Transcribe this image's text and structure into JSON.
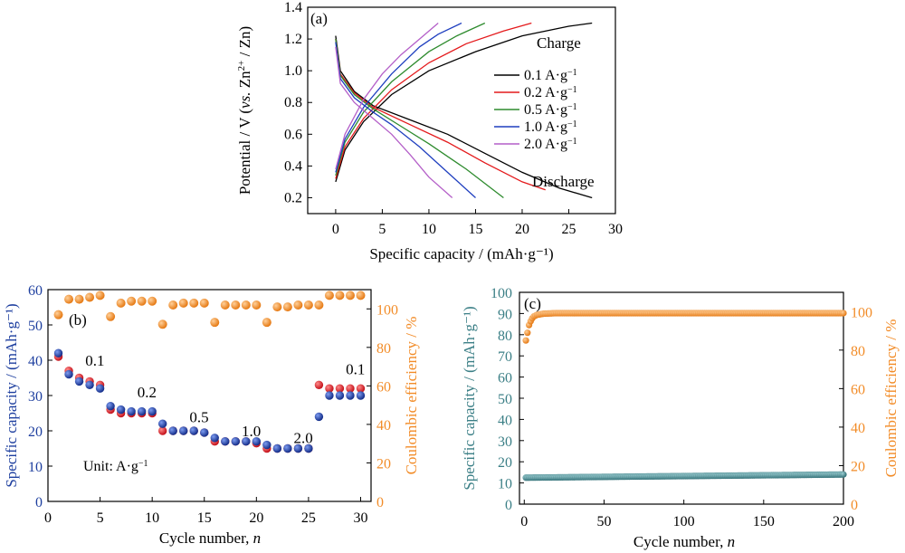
{
  "colors": {
    "black": "#000000",
    "red": "#e41a1c",
    "green": "#2e8b2e",
    "blue": "#1f3fbf",
    "purple": "#b45fc8",
    "capacity_blue": "#1e3f9f",
    "capacity_red": "#e31b23",
    "efficiency_orange": "#f28c28",
    "teal": "#3b7f86"
  },
  "chart_data": [
    {
      "panel": "(a)",
      "type": "line",
      "xlabel": "Specific capacity / (mAh·g⁻¹)",
      "ylabel_parts": [
        "Potential / V (",
        "vs.",
        " Zn",
        "2+",
        " / Zn)"
      ],
      "xlim": [
        -3,
        30
      ],
      "ylim": [
        0.1,
        1.4
      ],
      "xticks": [
        "0",
        "5",
        "10",
        "15",
        "20",
        "25",
        "30"
      ],
      "yticks": [
        "0.2",
        "0.4",
        "0.6",
        "0.8",
        "1.0",
        "1.2",
        "1.4"
      ],
      "annotations": [
        "Charge",
        "Discharge"
      ],
      "legend_unit": "A·g",
      "legend_sup": "−1",
      "series": [
        {
          "name": "0.1",
          "color": "#000000",
          "charge": [
            [
              0,
              0.3
            ],
            [
              1,
              0.5
            ],
            [
              3,
              0.68
            ],
            [
              6,
              0.85
            ],
            [
              10,
              1.0
            ],
            [
              15,
              1.12
            ],
            [
              20,
              1.22
            ],
            [
              25,
              1.28
            ],
            [
              27.5,
              1.3
            ]
          ],
          "discharge": [
            [
              0,
              1.22
            ],
            [
              0.5,
              1.0
            ],
            [
              2,
              0.87
            ],
            [
              4,
              0.78
            ],
            [
              8,
              0.69
            ],
            [
              12,
              0.6
            ],
            [
              16,
              0.48
            ],
            [
              20,
              0.36
            ],
            [
              24,
              0.26
            ],
            [
              27.5,
              0.2
            ]
          ]
        },
        {
          "name": "0.2",
          "color": "#e41a1c",
          "charge": [
            [
              0,
              0.32
            ],
            [
              1,
              0.52
            ],
            [
              3,
              0.7
            ],
            [
              6,
              0.88
            ],
            [
              10,
              1.05
            ],
            [
              14,
              1.17
            ],
            [
              18,
              1.25
            ],
            [
              21,
              1.3
            ]
          ],
          "discharge": [
            [
              0,
              1.2
            ],
            [
              0.5,
              0.98
            ],
            [
              2,
              0.86
            ],
            [
              4,
              0.77
            ],
            [
              8,
              0.66
            ],
            [
              12,
              0.55
            ],
            [
              16,
              0.42
            ],
            [
              20,
              0.3
            ],
            [
              22.5,
              0.25
            ]
          ]
        },
        {
          "name": "0.5",
          "color": "#2e8b2e",
          "charge": [
            [
              0,
              0.34
            ],
            [
              1,
              0.55
            ],
            [
              3,
              0.74
            ],
            [
              6,
              0.93
            ],
            [
              10,
              1.12
            ],
            [
              13,
              1.22
            ],
            [
              16,
              1.3
            ]
          ],
          "discharge": [
            [
              0,
              1.2
            ],
            [
              0.5,
              0.97
            ],
            [
              2,
              0.85
            ],
            [
              4,
              0.76
            ],
            [
              7,
              0.65
            ],
            [
              10,
              0.54
            ],
            [
              14,
              0.38
            ],
            [
              18,
              0.2
            ]
          ]
        },
        {
          "name": "1.0",
          "color": "#1f3fbf",
          "charge": [
            [
              0,
              0.36
            ],
            [
              1,
              0.57
            ],
            [
              3,
              0.77
            ],
            [
              6,
              0.98
            ],
            [
              9,
              1.15
            ],
            [
              11,
              1.23
            ],
            [
              13.5,
              1.3
            ]
          ],
          "discharge": [
            [
              0,
              1.18
            ],
            [
              0.5,
              0.95
            ],
            [
              2,
              0.83
            ],
            [
              4,
              0.74
            ],
            [
              6,
              0.66
            ],
            [
              9,
              0.52
            ],
            [
              12,
              0.36
            ],
            [
              15,
              0.2
            ]
          ]
        },
        {
          "name": "2.0",
          "color": "#b45fc8",
          "charge": [
            [
              0,
              0.38
            ],
            [
              1,
              0.6
            ],
            [
              3,
              0.82
            ],
            [
              5,
              0.98
            ],
            [
              7,
              1.1
            ],
            [
              9,
              1.2
            ],
            [
              11,
              1.3
            ]
          ],
          "discharge": [
            [
              0,
              1.15
            ],
            [
              0.5,
              0.92
            ],
            [
              2,
              0.8
            ],
            [
              4,
              0.7
            ],
            [
              6,
              0.6
            ],
            [
              8,
              0.47
            ],
            [
              10,
              0.33
            ],
            [
              12.5,
              0.2
            ]
          ]
        }
      ]
    },
    {
      "panel": "(b)",
      "type": "scatter",
      "xlabel_text": "Cycle number, ",
      "xlabel_var": "n",
      "ylabel_left": "Specific capacity / (mAh·g⁻¹)",
      "ylabel_right": "Coulombic efficiency / %",
      "xlim": [
        0,
        31
      ],
      "ylim_left": [
        0,
        60
      ],
      "ylim_right": [
        0,
        110
      ],
      "xticks": [
        "0",
        "5",
        "10",
        "15",
        "20",
        "25",
        "30"
      ],
      "yticks_left": [
        "0",
        "10",
        "20",
        "30",
        "40",
        "50",
        "60"
      ],
      "yticks_right": [
        "0",
        "20",
        "40",
        "60",
        "80",
        "100"
      ],
      "rate_labels": [
        {
          "text": "0.1",
          "x": 4.5,
          "y": 38.5
        },
        {
          "text": "0.2",
          "x": 9.5,
          "y": 29.5
        },
        {
          "text": "0.5",
          "x": 14.5,
          "y": 22.5
        },
        {
          "text": "1.0",
          "x": 19.5,
          "y": 18.5
        },
        {
          "text": "2.0",
          "x": 24.5,
          "y": 16.5
        },
        {
          "text": "0.1",
          "x": 29.5,
          "y": 36
        }
      ],
      "unit_text": "Unit: A·g",
      "unit_sup": "−1",
      "cycles": [
        1,
        2,
        3,
        4,
        5,
        6,
        7,
        8,
        9,
        10,
        11,
        12,
        13,
        14,
        15,
        16,
        17,
        18,
        19,
        20,
        21,
        22,
        23,
        24,
        25,
        26,
        27,
        28,
        29,
        30
      ],
      "charge_capacity": [
        42,
        36,
        34,
        33,
        32,
        27,
        26,
        25.5,
        25.5,
        25.5,
        22,
        20,
        20,
        20,
        19.5,
        18,
        17,
        17,
        17,
        17,
        16,
        15,
        15,
        15,
        15,
        24,
        30,
        30,
        30,
        30
      ],
      "discharge_capacity": [
        41,
        37,
        35,
        34,
        33,
        26,
        25,
        25,
        25,
        25,
        20,
        20,
        20,
        20,
        19.5,
        17,
        17,
        17,
        17,
        16.5,
        15,
        15,
        15,
        15,
        15,
        33,
        32,
        32,
        32,
        32
      ],
      "coulombic_efficiency": [
        97,
        105,
        105,
        106,
        107,
        96,
        103,
        104,
        104,
        104,
        92,
        102,
        103,
        103,
        103,
        93,
        102,
        102,
        102,
        102,
        93,
        101,
        101,
        102,
        102,
        102,
        107,
        107,
        107,
        107
      ]
    },
    {
      "panel": "(c)",
      "type": "scatter",
      "xlabel_text": "Cycle number, ",
      "xlabel_var": "n",
      "ylabel_left": "Specific capacity / (mAh·g⁻¹)",
      "ylabel_right": "Coulombic efficiency / %",
      "xlim": [
        -3,
        200
      ],
      "ylim_left": [
        0,
        100
      ],
      "ylim_right": [
        0,
        110
      ],
      "xticks": [
        "0",
        "50",
        "100",
        "150",
        "200"
      ],
      "yticks_left": [
        "0",
        "10",
        "20",
        "30",
        "40",
        "50",
        "60",
        "70",
        "80",
        "90",
        "100"
      ],
      "yticks_right": [
        "0",
        "20",
        "40",
        "60",
        "80",
        "100"
      ],
      "capacity_trend": {
        "start": 12.5,
        "end": 14,
        "cycles": 200
      },
      "efficiency_trend": {
        "first": 85,
        "ramp": [
          [
            1,
            85
          ],
          [
            2,
            89
          ],
          [
            3,
            93
          ],
          [
            4,
            95
          ],
          [
            5,
            96.5
          ],
          [
            6,
            97.5
          ],
          [
            8,
            98.3
          ],
          [
            12,
            98.9
          ],
          [
            20,
            99.2
          ]
        ],
        "plateau": 99.2
      }
    }
  ]
}
